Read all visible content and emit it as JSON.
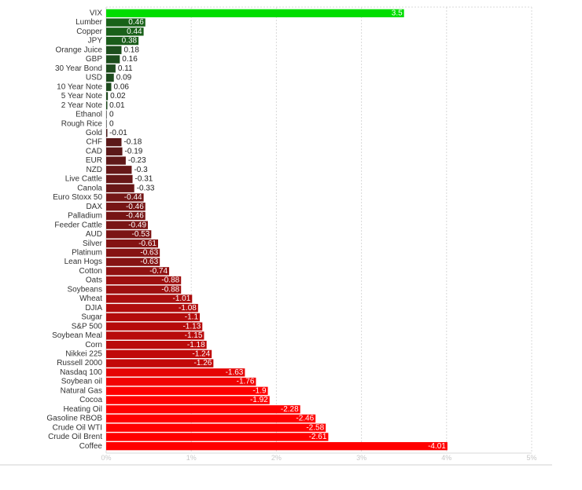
{
  "chart_data": {
    "type": "bar",
    "orientation": "horizontal",
    "categories": [
      "VIX",
      "Lumber",
      "Copper",
      "JPY",
      "Orange Juice",
      "GBP",
      "30 Year Bond",
      "USD",
      "10 Year Note",
      "5 Year Note",
      "2 Year Note",
      "Ethanol",
      "Rough Rice",
      "Gold",
      "CHF",
      "CAD",
      "EUR",
      "NZD",
      "Live Cattle",
      "Canola",
      "Euro Stoxx 50",
      "DAX",
      "Palladium",
      "Feeder Cattle",
      "AUD",
      "Silver",
      "Platinum",
      "Lean Hogs",
      "Cotton",
      "Oats",
      "Soybeans",
      "Wheat",
      "DJIA",
      "Sugar",
      "S&P 500",
      "Soybean Meal",
      "Corn",
      "Nikkei 225",
      "Russell 2000",
      "Nasdaq 100",
      "Soybean oil",
      "Natural Gas",
      "Cocoa",
      "Heating Oil",
      "Gasoline RBOB",
      "Crude Oil WTI",
      "Crude Oil Brent",
      "Coffee"
    ],
    "values": [
      3.5,
      0.46,
      0.44,
      0.38,
      0.18,
      0.16,
      0.11,
      0.09,
      0.06,
      0.02,
      0.01,
      0,
      0,
      -0.01,
      -0.18,
      -0.19,
      -0.23,
      -0.3,
      -0.31,
      -0.33,
      -0.44,
      -0.46,
      -0.46,
      -0.49,
      -0.53,
      -0.61,
      -0.63,
      -0.63,
      -0.74,
      -0.88,
      -0.88,
      -1.01,
      -1.08,
      -1.1,
      -1.13,
      -1.15,
      -1.18,
      -1.24,
      -1.26,
      -1.63,
      -1.76,
      -1.9,
      -1.92,
      -2.28,
      -2.46,
      -2.58,
      -2.61,
      -4.01
    ],
    "value_labels": [
      "3.5",
      "0.46",
      "0.44",
      "0.38",
      "0.18",
      "0.16",
      "0.11",
      "0.09",
      "0.06",
      "0.02",
      "0.01",
      "0",
      "0",
      "-0.01",
      "-0.18",
      "-0.19",
      "-0.23",
      "-0.3",
      "-0.31",
      "-0.33",
      "-0.44",
      "-0.46",
      "-0.46",
      "-0.49",
      "-0.53",
      "-0.61",
      "-0.63",
      "-0.63",
      "-0.74",
      "-0.88",
      "-0.88",
      "-1.01",
      "-1.08",
      "-1.1",
      "-1.13",
      "-1.15",
      "-1.18",
      "-1.24",
      "-1.26",
      "-1.63",
      "-1.76",
      "-1.9",
      "-1.92",
      "-2.28",
      "-2.46",
      "-2.58",
      "-2.61",
      "-4.01"
    ],
    "x_ticks": [
      "0%",
      "1%",
      "2%",
      "3%",
      "4%",
      "5%"
    ],
    "xlim": [
      0,
      5
    ],
    "magnitude_scale": "absolute value",
    "grid": "vertical dashed",
    "legend": "none",
    "colors": {
      "positive_bright": "#00dd00",
      "positive_dark": "#1e4a1e",
      "negative_dark": "#4a1c1c",
      "negative_bright": "#ff0000",
      "grid": "#d8d8d8",
      "tick_text": "#c8c8c8",
      "category_text": "#333333"
    }
  }
}
